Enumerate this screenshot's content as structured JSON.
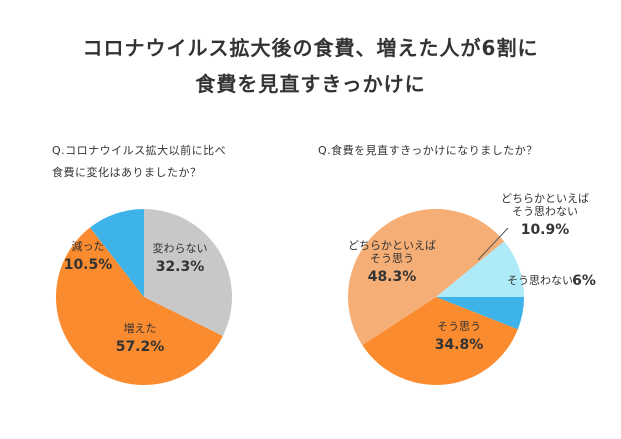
{
  "headline": {
    "line1": "コロナウイルス拡大後の食費、増えた人が6割に",
    "line2": "食費を見直すきっかけに"
  },
  "colors": {
    "orange": "#fb8b2f",
    "light_orange": "#f5ae75",
    "gray": "#c8c8c8",
    "blue": "#3db3ea",
    "light_blue": "#aeeaf8",
    "text": "#333333"
  },
  "chart_data": [
    {
      "type": "pie",
      "title_line1": "Q.コロナウイルス拡大以前に比べ",
      "title_line2": "食費に変化はありましたか？",
      "slices": [
        {
          "label": "変わらない",
          "value": 32.3,
          "value_label": "32.3%",
          "color": "#c8c8c8"
        },
        {
          "label": "増えた",
          "value": 57.2,
          "value_label": "57.2%",
          "color": "#fb8b2f"
        },
        {
          "label": "減った",
          "value": 10.5,
          "value_label": "10.5%",
          "color": "#3db3ea"
        }
      ]
    },
    {
      "type": "pie",
      "title_line1": "Q.食費を見直すきっかけになりましたか？",
      "slices": [
        {
          "label": "そう思わない",
          "value": 6,
          "value_label": "6%",
          "color": "#3db3ea"
        },
        {
          "label": "そう思う",
          "value": 34.8,
          "value_label": "34.8%",
          "color": "#fb8b2f"
        },
        {
          "label_lines": [
            "どちらかといえば",
            "そう思う"
          ],
          "value": 48.3,
          "value_label": "48.3%",
          "color": "#f5ae75"
        },
        {
          "label_lines": [
            "どちらかといえば",
            "そう思わない"
          ],
          "value": 10.9,
          "value_label": "10.9%",
          "color": "#aeeaf8"
        }
      ]
    }
  ]
}
